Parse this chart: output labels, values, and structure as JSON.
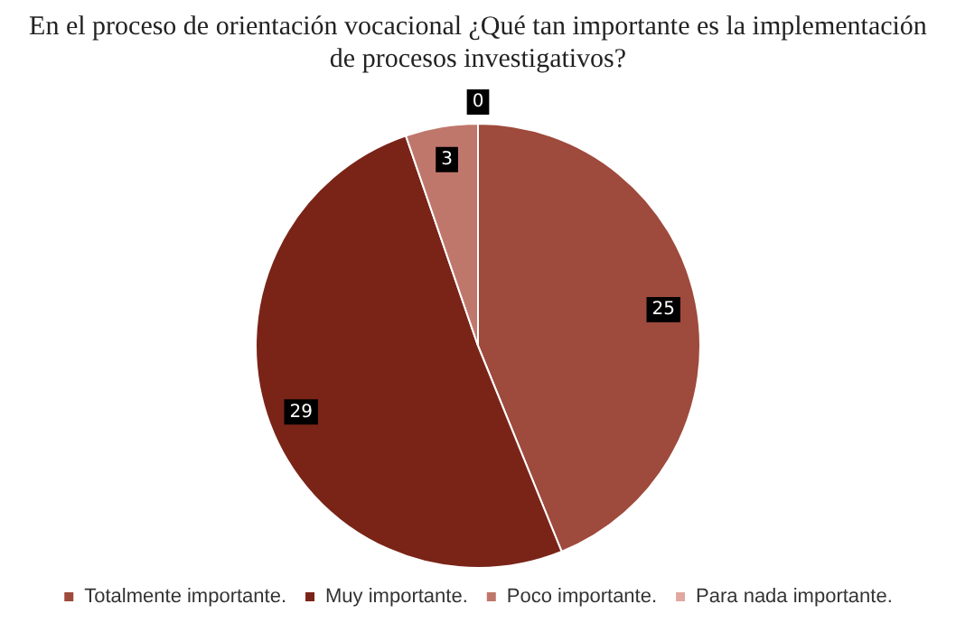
{
  "chart_data": {
    "type": "pie",
    "title": "En el proceso de orientación vocacional ¿Qué tan importante es la implementación de procesos investigativos?",
    "categories": [
      "Totalmente importante.",
      "Muy importante.",
      "Poco importante.",
      "Para nada importante."
    ],
    "values": [
      25,
      29,
      3,
      0
    ],
    "colors": [
      "#9e4a3c",
      "#7a2418",
      "#c0776b",
      "#e0a8a0"
    ],
    "value_labels": [
      "25",
      "29",
      "3",
      "0"
    ],
    "legend": "bottom"
  }
}
